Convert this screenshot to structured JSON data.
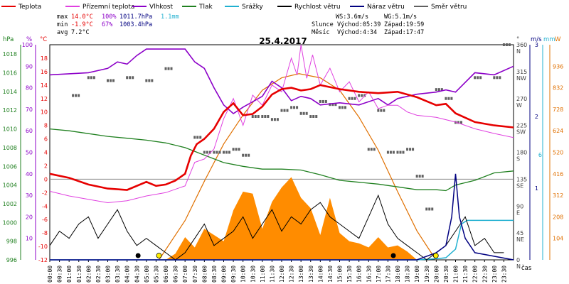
{
  "header": {
    "date": "25.4.2017",
    "legend": [
      {
        "label": "Teplota",
        "color": "#e60000"
      },
      {
        "label": "Přízemní teplota",
        "color": "#e040e0"
      },
      {
        "label": "Vlhkost",
        "color": "#8c00c8"
      },
      {
        "label": "Tlak",
        "color": "#208020"
      },
      {
        "label": "Srážky",
        "color": "#20b0d0"
      },
      {
        "label": "Rychlost větru",
        "color": "#000000"
      },
      {
        "label": "Náraz větru",
        "color": "#000080"
      },
      {
        "label": "Směr větru",
        "color": "#606060"
      }
    ],
    "stats": {
      "max_label": "max",
      "max_temp": "14.0°C",
      "max_hum": "100%",
      "max_press": "1011.7hPa",
      "rain": "1.1mm",
      "min_label": "min",
      "min_temp": "-1.9°C",
      "min_hum": "67%",
      "min_press": "1003.4hPa",
      "avg_label": "avg",
      "avg_temp": "7.2°C"
    },
    "info": {
      "ws": "WS:3.6m/s",
      "wg": "WG:5.1m/s",
      "sun_label": "Slunce",
      "sunrise": "Východ:05:39",
      "sunset": "Západ:19:59",
      "moon_label": "Měsíc",
      "moonrise": "Východ:4:34",
      "moonset": "Západ:17:47"
    }
  },
  "chart_data": {
    "type": "line",
    "x_unit": "čas",
    "x_ticks": [
      "00:00",
      "00:30",
      "01:00",
      "01:30",
      "02:00",
      "02:30",
      "03:00",
      "03:30",
      "04:00",
      "04:30",
      "05:00",
      "05:30",
      "06:00",
      "06:30",
      "07:00",
      "07:30",
      "08:00",
      "08:30",
      "09:00",
      "09:30",
      "10:00",
      "10:30",
      "11:00",
      "11:30",
      "12:00",
      "12:30",
      "13:00",
      "13:30",
      "14:00",
      "14:30",
      "15:00",
      "15:30",
      "16:00",
      "16:30",
      "17:00",
      "17:30",
      "18:00",
      "18:30",
      "19:00",
      "19:30",
      "20:00",
      "20:30",
      "21:00",
      "21:30",
      "22:00",
      "22:30",
      "23:00",
      "23:30"
    ],
    "axes": {
      "pressure": {
        "unit": "hPa",
        "ticks": [
          "996",
          "998",
          "1000",
          "1002",
          "1004",
          "1006",
          "1008",
          "1010",
          "1012",
          "1014",
          "1016",
          "1018"
        ],
        "range": [
          996,
          1019
        ]
      },
      "humidity": {
        "unit": "%",
        "ticks": [
          "10",
          "20",
          "30",
          "40",
          "50",
          "60",
          "70",
          "80",
          "90",
          "100"
        ],
        "range": [
          0,
          100
        ]
      },
      "temperature": {
        "unit": "°C",
        "ticks": [
          "-12",
          "-10",
          "-8",
          "-6",
          "-4",
          "-2",
          "0",
          "2",
          "4",
          "6",
          "8",
          "10",
          "12",
          "14",
          "16",
          "18"
        ],
        "range": [
          -12,
          20
        ]
      },
      "wind_dir": {
        "unit": "°",
        "ticks": [
          "0\nN",
          "45\nNE",
          "90\nE",
          "135\nSE",
          "180\nS",
          "225\nSW",
          "270\nW",
          "315\nNW",
          "360\nN"
        ],
        "range": [
          0,
          360
        ]
      },
      "wind_speed": {
        "unit": "m/s",
        "ticks": [
          "1",
          "2",
          "3"
        ],
        "range": [
          0,
          3
        ]
      },
      "rain": {
        "unit": "mm",
        "ticks": [
          "6"
        ],
        "range": [
          0,
          6
        ]
      },
      "solar": {
        "unit": "W",
        "ticks": [
          "104",
          "208",
          "312",
          "416",
          "520",
          "624",
          "728",
          "832",
          "936"
        ],
        "range": [
          0,
          1040
        ]
      }
    },
    "series": [
      {
        "name": "Teplota",
        "axis": "temperature",
        "x": [
          0,
          1,
          2,
          3,
          4,
          5,
          5.5,
          6,
          6.5,
          7,
          7.3,
          7.6,
          8,
          8.5,
          9,
          9.5,
          10,
          10.5,
          11,
          11.5,
          12,
          12.5,
          13,
          13.5,
          14,
          15,
          16,
          17,
          18,
          19,
          20,
          20.5,
          21,
          22,
          23,
          24
        ],
        "y": [
          0.8,
          0.2,
          -0.8,
          -1.4,
          -1.6,
          -0.4,
          -1.0,
          -0.8,
          -0.2,
          0.8,
          3.5,
          5.2,
          6.0,
          7.5,
          10,
          11.3,
          9.5,
          9.7,
          10.8,
          12.6,
          13.4,
          13.6,
          13.2,
          13.4,
          14.0,
          13.4,
          13.0,
          12.8,
          13.0,
          12.2,
          11.0,
          11.2,
          9.8,
          8.5,
          8.0,
          7.7
        ]
      },
      {
        "name": "Přízemní teplota",
        "axis": "temperature",
        "x": [
          0,
          1,
          2,
          3,
          4,
          5,
          6,
          7,
          7.5,
          8,
          8.5,
          9,
          9.5,
          10,
          10.5,
          11,
          11.5,
          12,
          12.5,
          12.8,
          13,
          13.3,
          13.6,
          14,
          14.5,
          15,
          15.5,
          16,
          16.5,
          17,
          17.5,
          18,
          18.5,
          19,
          20,
          21,
          22,
          23,
          24
        ],
        "y": [
          -1.8,
          -2.5,
          -3.0,
          -3.5,
          -3.2,
          -2.5,
          -2.0,
          -1.0,
          2.5,
          3.0,
          4.5,
          9.0,
          12.0,
          8.0,
          12.5,
          11.0,
          14.0,
          13.0,
          18.0,
          15.5,
          20.0,
          15.0,
          18.5,
          14.0,
          16.5,
          13.0,
          14.5,
          11.5,
          13.0,
          10.5,
          11.0,
          11.0,
          10.0,
          9.5,
          9.2,
          8.5,
          7.5,
          6.8,
          6.2
        ]
      },
      {
        "name": "Vlhkost",
        "axis": "humidity",
        "x": [
          0,
          2,
          3,
          3.5,
          4,
          4.5,
          5,
          6,
          7,
          7.5,
          8,
          8.5,
          9,
          9.5,
          10,
          11,
          11.5,
          12,
          12.5,
          13,
          13.5,
          14,
          15,
          16,
          17,
          17.5,
          18,
          19,
          20,
          20.5,
          21,
          22,
          23,
          24
        ],
        "y": [
          86,
          87,
          89,
          92,
          91,
          95,
          98,
          98,
          98,
          92,
          89,
          80,
          72,
          68,
          71,
          76,
          83,
          80,
          74,
          76,
          75,
          72,
          73,
          72,
          75,
          72,
          75,
          77,
          78,
          79,
          78,
          87,
          86,
          90
        ]
      },
      {
        "name": "Tlak",
        "axis": "pressure",
        "x": [
          0,
          1,
          2,
          3,
          4,
          5,
          6,
          7,
          8,
          9,
          10,
          11,
          12,
          13,
          14,
          15,
          16,
          17,
          18,
          19,
          20,
          20.5,
          21,
          22,
          23,
          24
        ],
        "y": [
          1010.0,
          1009.8,
          1009.5,
          1009.2,
          1009.0,
          1008.8,
          1008.5,
          1008.0,
          1007.2,
          1006.4,
          1006.0,
          1005.7,
          1005.7,
          1005.6,
          1005.1,
          1004.5,
          1004.3,
          1004.1,
          1003.8,
          1003.5,
          1003.5,
          1003.4,
          1004.0,
          1004.5,
          1005.3,
          1005.5
        ]
      },
      {
        "name": "Srážky",
        "axis": "rain",
        "x": [
          0,
          19,
          20,
          20.5,
          21,
          21.3,
          21.6,
          22,
          24
        ],
        "y": [
          0,
          0,
          0.03,
          0.06,
          0.3,
          1.0,
          1.1,
          1.1,
          1.1
        ]
      },
      {
        "name": "Rychlost větru",
        "axis": "wind_speed",
        "x": [
          0,
          0.5,
          1,
          1.5,
          2,
          2.5,
          3,
          3.5,
          4,
          4.5,
          5,
          5.5,
          6,
          6.5,
          7,
          7.5,
          8,
          8.5,
          9,
          9.5,
          10,
          10.5,
          11,
          11.5,
          12,
          12.5,
          13,
          13.5,
          14,
          14.5,
          15,
          15.5,
          16,
          16.5,
          17,
          17.5,
          18,
          18.5,
          19,
          19.5,
          20,
          20.5,
          21,
          21.5,
          22,
          22.5,
          23,
          23.5
        ],
        "y": [
          0.2,
          0.4,
          0.3,
          0.5,
          0.6,
          0.3,
          0.5,
          0.7,
          0.4,
          0.2,
          0.3,
          0.2,
          0.1,
          0.0,
          0.1,
          0.3,
          0.5,
          0.2,
          0.3,
          0.4,
          0.6,
          0.3,
          0.5,
          0.7,
          0.4,
          0.6,
          0.5,
          0.7,
          0.8,
          0.6,
          0.5,
          0.4,
          0.3,
          0.6,
          0.9,
          0.5,
          0.3,
          0.2,
          0.1,
          0.0,
          0.1,
          0.2,
          0.4,
          0.6,
          0.2,
          0.3,
          0.1,
          0.1
        ]
      },
      {
        "name": "Náraz větru",
        "axis": "wind_speed",
        "x": [
          0,
          19,
          20,
          20.5,
          20.8,
          21,
          21.2,
          21.5,
          22,
          24
        ],
        "y": [
          0,
          0,
          0.1,
          0.2,
          0.6,
          1.2,
          0.6,
          0.3,
          0.1,
          0
        ]
      },
      {
        "name": "Směr větru",
        "axis": "wind_dir",
        "x": [
          1.2,
          2,
          3,
          4,
          5,
          6,
          7.5,
          8,
          8.5,
          9,
          9.5,
          10,
          10.5,
          11,
          11.5,
          12,
          12.5,
          13,
          13.5,
          14,
          14.5,
          15,
          15.5,
          16,
          16.5,
          17,
          17.5,
          18,
          18.5,
          19,
          19.5,
          20,
          20.5,
          21,
          22,
          23,
          23.5
        ],
        "y": [
          275,
          305,
          300,
          305,
          300,
          320,
          205,
          180,
          180,
          180,
          185,
          175,
          240,
          240,
          235,
          250,
          255,
          245,
          240,
          265,
          260,
          255,
          270,
          275,
          185,
          250,
          180,
          180,
          185,
          140,
          85,
          285,
          270,
          230,
          305,
          305,
          360
        ]
      },
      {
        "name": "Sluneční svit",
        "axis": "solar",
        "x": [
          6,
          6.5,
          7,
          7.5,
          8,
          8.5,
          9,
          9.5,
          10,
          10.5,
          11,
          11.5,
          12,
          12.5,
          13,
          13.5,
          14,
          14.5,
          15,
          15.5,
          16,
          16.5,
          17,
          17.5,
          18,
          18.5,
          19
        ],
        "y": [
          0,
          30,
          110,
          60,
          150,
          120,
          90,
          240,
          330,
          320,
          150,
          280,
          350,
          400,
          300,
          250,
          120,
          300,
          130,
          90,
          80,
          60,
          110,
          60,
          70,
          40,
          0
        ]
      },
      {
        "name": "Teoretické záření",
        "axis": "solar",
        "x": [
          5.65,
          7,
          8,
          9,
          10,
          11,
          12,
          12.9,
          14,
          15,
          16,
          17,
          18,
          19,
          19.98
        ],
        "y": [
          0,
          190,
          380,
          560,
          700,
          820,
          880,
          900,
          880,
          820,
          690,
          530,
          330,
          140,
          0
        ]
      }
    ]
  }
}
